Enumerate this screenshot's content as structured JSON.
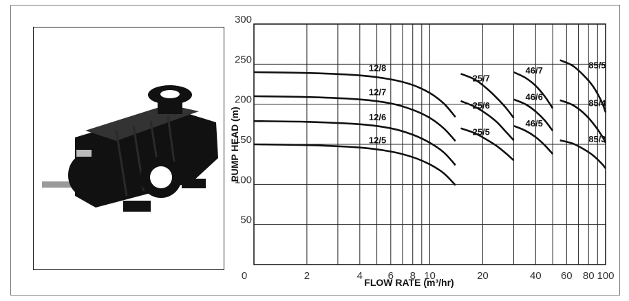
{
  "image": {
    "name": "multistage-pump-photo",
    "body_color": "#111111"
  },
  "chart_data": {
    "type": "line",
    "xlabel": "FLOW RATE (m³/hr)",
    "ylabel": "PUMP HEAD (m)",
    "x_scale": "log",
    "xlim": [
      1,
      100
    ],
    "ylim": [
      0,
      300
    ],
    "x_ticks": [
      {
        "value": 1,
        "label": "0"
      },
      {
        "value": 2,
        "label": "2"
      },
      {
        "value": 4,
        "label": "4"
      },
      {
        "value": 6,
        "label": "6"
      },
      {
        "value": 8,
        "label": "8"
      },
      {
        "value": 10,
        "label": "10"
      },
      {
        "value": 20,
        "label": "20"
      },
      {
        "value": 40,
        "label": "40"
      },
      {
        "value": 60,
        "label": "60"
      },
      {
        "value": 80,
        "label": "80"
      },
      {
        "value": 100,
        "label": "100"
      }
    ],
    "x_gridlines": [
      1,
      2,
      3,
      4,
      5,
      6,
      7,
      8,
      9,
      10,
      20,
      30,
      40,
      50,
      60,
      70,
      80,
      90,
      100
    ],
    "y_ticks": [
      {
        "value": 0,
        "label": ""
      },
      {
        "value": 50,
        "label": "50"
      },
      {
        "value": 100,
        "label": "100"
      },
      {
        "value": 150,
        "label": "150"
      },
      {
        "value": 200,
        "label": "200"
      },
      {
        "value": 250,
        "label": "250"
      },
      {
        "value": 300,
        "label": "300"
      }
    ],
    "origin_label": "0",
    "grid": true,
    "line_color": "#111111",
    "series": [
      {
        "name": "12/8",
        "x": [
          1,
          2,
          4,
          6,
          8,
          10,
          12,
          14
        ],
        "y": [
          240,
          239,
          236,
          231,
          224,
          214,
          201,
          184
        ]
      },
      {
        "name": "12/7",
        "x": [
          1,
          2,
          4,
          6,
          8,
          10,
          12,
          14
        ],
        "y": [
          210,
          209,
          206,
          201,
          193,
          183,
          170,
          154
        ]
      },
      {
        "name": "12/6",
        "x": [
          1,
          2,
          4,
          6,
          8,
          10,
          12,
          14
        ],
        "y": [
          179,
          178,
          175,
          170,
          162,
          152,
          140,
          124
        ]
      },
      {
        "name": "12/5",
        "x": [
          1,
          2,
          4,
          6,
          8,
          10,
          12,
          14
        ],
        "y": [
          150,
          149,
          146,
          141,
          134,
          125,
          114,
          99
        ]
      },
      {
        "name": "25/7",
        "x": [
          15,
          18,
          21,
          24,
          27,
          30
        ],
        "y": [
          238,
          231,
          220,
          208,
          196,
          183
        ]
      },
      {
        "name": "25/6",
        "x": [
          15,
          18,
          21,
          24,
          27,
          30
        ],
        "y": [
          204,
          197,
          188,
          178,
          166,
          155
        ]
      },
      {
        "name": "25/5",
        "x": [
          15,
          18,
          21,
          24,
          27,
          30
        ],
        "y": [
          170,
          164,
          156,
          148,
          139,
          130
        ]
      },
      {
        "name": "46/7",
        "x": [
          30,
          35,
          40,
          45,
          50
        ],
        "y": [
          240,
          233,
          223,
          210,
          195
        ]
      },
      {
        "name": "46/6",
        "x": [
          30,
          35,
          40,
          45,
          50
        ],
        "y": [
          206,
          200,
          191,
          180,
          167
        ]
      },
      {
        "name": "46/5",
        "x": [
          30,
          35,
          40,
          45,
          50
        ],
        "y": [
          173,
          167,
          159,
          149,
          138
        ]
      },
      {
        "name": "85/5",
        "x": [
          55,
          65,
          75,
          85,
          95,
          100
        ],
        "y": [
          255,
          248,
          236,
          222,
          203,
          190
        ]
      },
      {
        "name": "85/4",
        "x": [
          55,
          65,
          75,
          85,
          95,
          100
        ],
        "y": [
          205,
          199,
          189,
          176,
          161,
          152
        ]
      },
      {
        "name": "85/3",
        "x": [
          55,
          65,
          75,
          85,
          95,
          100
        ],
        "y": [
          155,
          151,
          144,
          136,
          126,
          120
        ]
      }
    ]
  }
}
